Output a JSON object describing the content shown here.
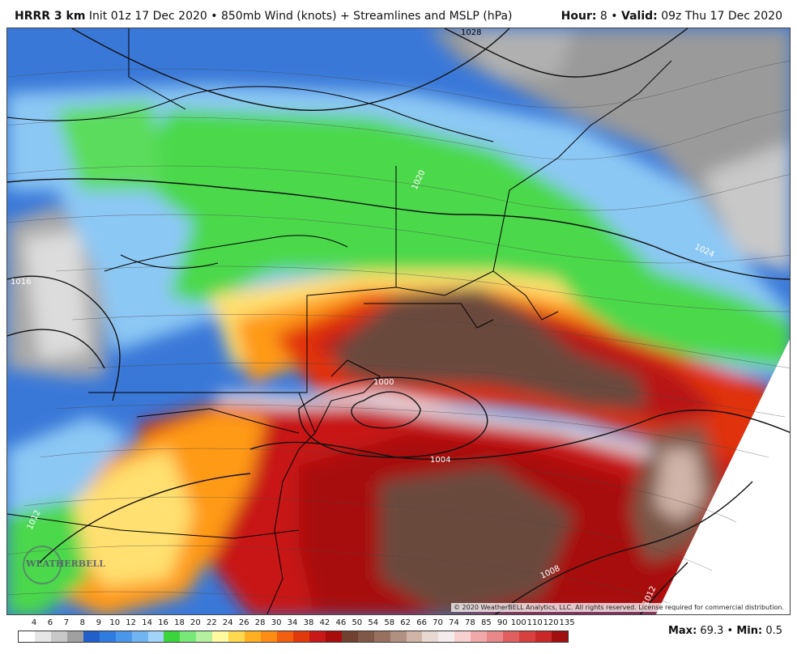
{
  "header": {
    "model": "HRRR 3 km",
    "init": "Init 01z 17 Dec 2020",
    "bullet": "•",
    "product": "850mb Wind (knots) + Streamlines and MSLP (hPa)",
    "hour_label": "Hour:",
    "hour_value": "8",
    "valid_label": "Valid:",
    "valid_value": "09z Thu 17 Dec 2020"
  },
  "map": {
    "isobar_labels": [
      "1028",
      "1020",
      "1024",
      "1016",
      "1000",
      "1004",
      "1012",
      "1008",
      "1012"
    ],
    "copyright": "© 2020 WeatherBELL Analytics, LLC. All rights reserved. License required for commercial distribution.",
    "logo_text": "WEATHERBELL",
    "colors": {
      "background_blue": "#3a78d8",
      "brown_core": "#6b4a3c",
      "dark_red": "#b81616"
    }
  },
  "legend": {
    "labels": [
      "4",
      "6",
      "7",
      "8",
      "9",
      "10",
      "12",
      "14",
      "16",
      "18",
      "20",
      "22",
      "24",
      "26",
      "28",
      "30",
      "34",
      "38",
      "42",
      "46",
      "50",
      "54",
      "58",
      "62",
      "66",
      "70",
      "74",
      "78",
      "85",
      "90",
      "100",
      "110",
      "120",
      "135"
    ],
    "colors": [
      "#ffffff",
      "#e6e6e6",
      "#c8c8c8",
      "#a0a0a0",
      "#2060c8",
      "#2f7ce0",
      "#4a96ea",
      "#70b4f2",
      "#a2d4fa",
      "#3cd43c",
      "#78e878",
      "#b4f0a0",
      "#fffaa0",
      "#ffd850",
      "#ffb020",
      "#ff8c14",
      "#f06010",
      "#e03a0c",
      "#c81818",
      "#a80c0c",
      "#704030",
      "#805848",
      "#987060",
      "#b09080",
      "#d0b4a8",
      "#e8d8d2",
      "#f4ecec",
      "#f8d0d0",
      "#f0a8a8",
      "#e88888",
      "#e06060",
      "#d84040",
      "#c82828",
      "#a01010"
    ]
  },
  "stats": {
    "max_label": "Max:",
    "max_value": "69.3",
    "bullet": "•",
    "min_label": "Min:",
    "min_value": "0.5"
  }
}
